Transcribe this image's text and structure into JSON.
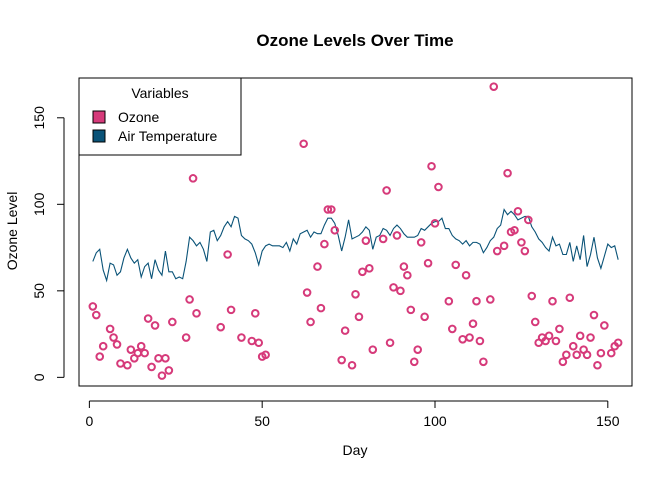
{
  "chart_data": {
    "type": "scatter",
    "title": "Ozone Levels Over Time",
    "xlabel": "Day",
    "ylabel": "Ozone Level",
    "xlim": [
      -3,
      157
    ],
    "ylim": [
      -5,
      173
    ],
    "x_ticks": [
      0,
      50,
      100,
      150
    ],
    "y_ticks": [
      0,
      50,
      100,
      150
    ],
    "legend": {
      "title": "Variables",
      "position": "top-left",
      "entries": [
        {
          "label": "Ozone",
          "color": "#d63a7a"
        },
        {
          "label": "Air Temperature",
          "color": "#0a5378"
        }
      ]
    },
    "series": [
      {
        "name": "Ozone",
        "kind": "points",
        "color": "#d63a7a",
        "points": [
          [
            1,
            41
          ],
          [
            2,
            36
          ],
          [
            3,
            12
          ],
          [
            4,
            18
          ],
          [
            6,
            28
          ],
          [
            7,
            23
          ],
          [
            8,
            19
          ],
          [
            9,
            8
          ],
          [
            11,
            7
          ],
          [
            12,
            16
          ],
          [
            13,
            11
          ],
          [
            14,
            14
          ],
          [
            15,
            18
          ],
          [
            16,
            14
          ],
          [
            17,
            34
          ],
          [
            18,
            6
          ],
          [
            19,
            30
          ],
          [
            20,
            11
          ],
          [
            21,
            1
          ],
          [
            22,
            11
          ],
          [
            23,
            4
          ],
          [
            24,
            32
          ],
          [
            28,
            23
          ],
          [
            29,
            45
          ],
          [
            30,
            115
          ],
          [
            31,
            37
          ],
          [
            38,
            29
          ],
          [
            40,
            71
          ],
          [
            41,
            39
          ],
          [
            44,
            23
          ],
          [
            47,
            21
          ],
          [
            48,
            37
          ],
          [
            49,
            20
          ],
          [
            50,
            12
          ],
          [
            51,
            13
          ],
          [
            62,
            135
          ],
          [
            63,
            49
          ],
          [
            64,
            32
          ],
          [
            66,
            64
          ],
          [
            67,
            40
          ],
          [
            68,
            77
          ],
          [
            69,
            97
          ],
          [
            70,
            97
          ],
          [
            71,
            85
          ],
          [
            73,
            10
          ],
          [
            74,
            27
          ],
          [
            76,
            7
          ],
          [
            77,
            48
          ],
          [
            78,
            35
          ],
          [
            79,
            61
          ],
          [
            80,
            79
          ],
          [
            81,
            63
          ],
          [
            82,
            16
          ],
          [
            85,
            80
          ],
          [
            86,
            108
          ],
          [
            87,
            20
          ],
          [
            88,
            52
          ],
          [
            89,
            82
          ],
          [
            90,
            50
          ],
          [
            91,
            64
          ],
          [
            92,
            59
          ],
          [
            93,
            39
          ],
          [
            94,
            9
          ],
          [
            95,
            16
          ],
          [
            96,
            78
          ],
          [
            97,
            35
          ],
          [
            98,
            66
          ],
          [
            99,
            122
          ],
          [
            100,
            89
          ],
          [
            101,
            110
          ],
          [
            104,
            44
          ],
          [
            105,
            28
          ],
          [
            106,
            65
          ],
          [
            108,
            22
          ],
          [
            109,
            59
          ],
          [
            110,
            23
          ],
          [
            111,
            31
          ],
          [
            112,
            44
          ],
          [
            113,
            21
          ],
          [
            114,
            9
          ],
          [
            116,
            45
          ],
          [
            117,
            168
          ],
          [
            118,
            73
          ],
          [
            120,
            76
          ],
          [
            121,
            118
          ],
          [
            122,
            84
          ],
          [
            123,
            85
          ],
          [
            124,
            96
          ],
          [
            125,
            78
          ],
          [
            126,
            73
          ],
          [
            127,
            91
          ],
          [
            128,
            47
          ],
          [
            129,
            32
          ],
          [
            130,
            20
          ],
          [
            131,
            23
          ],
          [
            132,
            21
          ],
          [
            133,
            24
          ],
          [
            134,
            44
          ],
          [
            135,
            21
          ],
          [
            136,
            28
          ],
          [
            137,
            9
          ],
          [
            138,
            13
          ],
          [
            139,
            46
          ],
          [
            140,
            18
          ],
          [
            141,
            13
          ],
          [
            142,
            24
          ],
          [
            143,
            16
          ],
          [
            144,
            13
          ],
          [
            145,
            23
          ],
          [
            146,
            36
          ],
          [
            147,
            7
          ],
          [
            148,
            14
          ],
          [
            149,
            30
          ],
          [
            151,
            14
          ],
          [
            152,
            18
          ],
          [
            153,
            20
          ]
        ]
      },
      {
        "name": "Air Temperature",
        "kind": "line",
        "color": "#0a5378",
        "x_start": 1,
        "values": [
          67,
          72,
          74,
          62,
          56,
          66,
          65,
          59,
          61,
          69,
          74,
          69,
          66,
          68,
          58,
          64,
          66,
          57,
          68,
          62,
          59,
          73,
          61,
          61,
          57,
          58,
          57,
          67,
          81,
          79,
          76,
          78,
          74,
          67,
          84,
          85,
          79,
          82,
          87,
          90,
          87,
          93,
          92,
          82,
          80,
          79,
          77,
          72,
          65,
          73,
          76,
          77,
          76,
          76,
          76,
          75,
          78,
          73,
          80,
          77,
          83,
          84,
          85,
          81,
          84,
          83,
          83,
          88,
          92,
          92,
          89,
          82,
          73,
          81,
          91,
          80,
          81,
          82,
          84,
          87,
          85,
          74,
          81,
          82,
          86,
          85,
          82,
          86,
          88,
          86,
          83,
          81,
          81,
          81,
          82,
          86,
          85,
          87,
          89,
          90,
          90,
          92,
          86,
          86,
          82,
          80,
          79,
          77,
          79,
          76,
          78,
          78,
          77,
          72,
          75,
          79,
          81,
          86,
          88,
          97,
          94,
          96,
          94,
          91,
          92,
          93,
          93,
          87,
          84,
          80,
          78,
          75,
          73,
          81,
          76,
          77,
          71,
          71,
          78,
          67,
          76,
          68,
          82,
          64,
          71,
          81,
          69,
          63,
          70,
          77,
          75,
          76,
          68
        ]
      }
    ]
  }
}
